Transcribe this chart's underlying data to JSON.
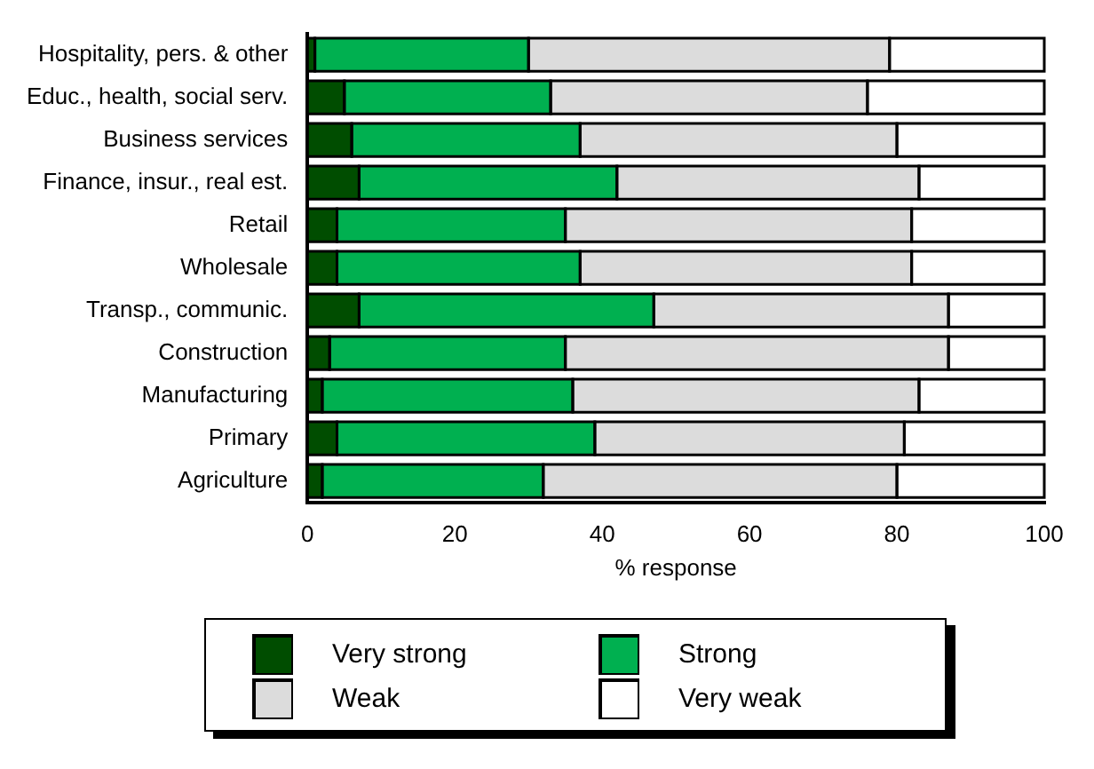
{
  "chart_data": {
    "type": "bar",
    "orientation": "horizontal",
    "stacked": true,
    "categories": [
      "Hospitality, pers. & other",
      "Educ., health, social serv.",
      "Business services",
      "Finance, insur., real est.",
      "Retail",
      "Wholesale",
      "Transp., communic.",
      "Construction",
      "Manufacturing",
      "Primary",
      "Agriculture"
    ],
    "series": [
      {
        "name": "Very strong",
        "color": "#004d00",
        "values": [
          1,
          5,
          6,
          7,
          4,
          4,
          7,
          3,
          2,
          4,
          2
        ]
      },
      {
        "name": "Strong",
        "color": "#00b050",
        "values": [
          29,
          28,
          31,
          35,
          31,
          33,
          40,
          32,
          34,
          35,
          30
        ]
      },
      {
        "name": "Weak",
        "color": "#dcdcdc",
        "values": [
          49,
          43,
          43,
          41,
          47,
          45,
          40,
          52,
          47,
          42,
          48
        ]
      },
      {
        "name": "Very weak",
        "color": "#ffffff",
        "values": [
          21,
          24,
          20,
          17,
          18,
          18,
          13,
          13,
          17,
          19,
          20
        ]
      }
    ],
    "xlabel": "% response",
    "xlim": [
      0,
      100
    ],
    "xticks": [
      0,
      20,
      40,
      60,
      80,
      100
    ],
    "grid": false,
    "legend": "bottom"
  }
}
